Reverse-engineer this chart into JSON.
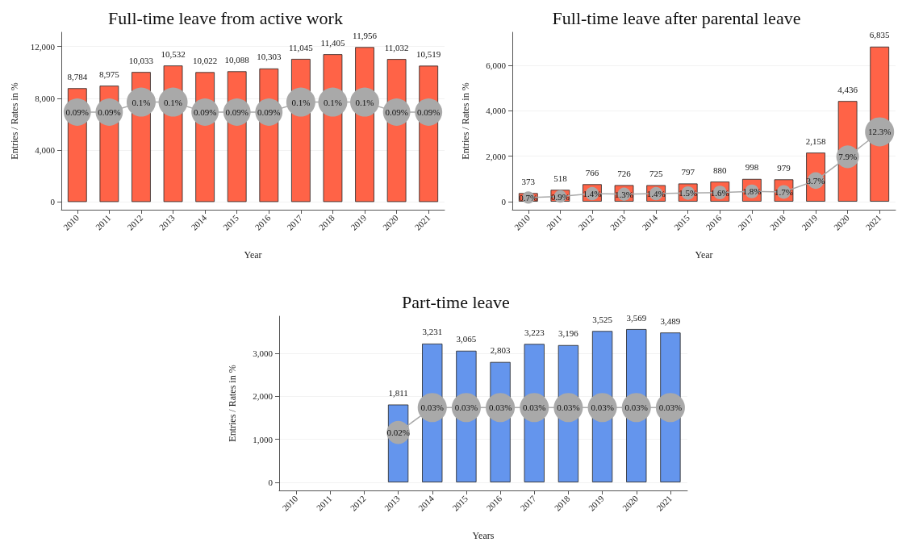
{
  "chart_data": [
    {
      "type": "bar",
      "title": "Full-time leave from active work",
      "xlabel": "Year",
      "ylabel": "Entries / Rates in %",
      "grid": "y",
      "categories": [
        "2010",
        "2011",
        "2012",
        "2013",
        "2014",
        "2015",
        "2016",
        "2017",
        "2018",
        "2019",
        "2020",
        "2021"
      ],
      "ylim": [
        -600,
        13100
      ],
      "yticks": [
        {
          "value": 0,
          "label": "0"
        },
        {
          "value": 4000,
          "label": "4,000"
        },
        {
          "value": 8000,
          "label": "8,000"
        },
        {
          "value": 12000,
          "label": "12,000"
        }
      ],
      "y2lim": [
        -0.0078,
        0.17
      ],
      "series": [
        {
          "color": "#ff6347",
          "values": [
            8784,
            8975,
            10033,
            10532,
            10022,
            10088,
            10303,
            11045,
            11405,
            11956,
            11032,
            10519
          ],
          "value_labels": [
            "8,784",
            "8,975",
            "10,033",
            "10,532",
            "10,022",
            "10,088",
            "10,303",
            "11,045",
            "11,405",
            "11,956",
            "11,032",
            "10,519"
          ]
        },
        {
          "type": "line",
          "axis": "y2",
          "color": "#a9a9a9",
          "marker": "circle",
          "values": [
            0.09,
            0.09,
            0.1,
            0.1,
            0.09,
            0.09,
            0.09,
            0.1,
            0.1,
            0.1,
            0.09,
            0.09
          ],
          "value_labels": [
            "0.09%",
            "0.09%",
            "0.1%",
            "0.1%",
            "0.09%",
            "0.09%",
            "0.09%",
            "0.1%",
            "0.1%",
            "0.1%",
            "0.09%",
            "0.09%"
          ]
        }
      ]
    },
    {
      "type": "bar",
      "title": "Full-time leave after parental leave",
      "xlabel": "Year",
      "ylabel": "Entries / Rates in %",
      "grid": "y",
      "categories": [
        "2010",
        "2011",
        "2012",
        "2013",
        "2014",
        "2015",
        "2016",
        "2017",
        "2018",
        "2019",
        "2020",
        "2021"
      ],
      "ylim": [
        -360,
        7470
      ],
      "yticks": [
        {
          "value": 0,
          "label": "0"
        },
        {
          "value": 2000,
          "label": "2,000"
        },
        {
          "value": 4000,
          "label": "4,000"
        },
        {
          "value": 6000,
          "label": "6,000"
        }
      ],
      "y2lim": [
        -1.44,
        29.88
      ],
      "series": [
        {
          "color": "#ff6347",
          "values": [
            373,
            518,
            766,
            726,
            725,
            797,
            880,
            998,
            979,
            2158,
            4436,
            6835
          ],
          "value_labels": [
            "373",
            "518",
            "766",
            "726",
            "725",
            "797",
            "880",
            "998",
            "979",
            "2,158",
            "4,436",
            "6,835"
          ]
        },
        {
          "type": "line",
          "axis": "y2",
          "color": "#a9a9a9",
          "marker": "circle",
          "values": [
            0.7,
            0.9,
            1.4,
            1.3,
            1.4,
            1.5,
            1.6,
            1.8,
            1.7,
            3.7,
            7.9,
            12.3
          ],
          "value_labels": [
            "0.7%",
            "0.9%",
            "1.4%",
            "1.3%",
            "1.4%",
            "1.5%",
            "1.6%",
            "1.8%",
            "1.7%",
            "3.7%",
            "7.9%",
            "12.3%"
          ]
        }
      ]
    },
    {
      "type": "bar",
      "title": "Part-time leave",
      "xlabel": "Years",
      "ylabel": "Entries / Rates in %",
      "grid": "y",
      "categories": [
        "2010",
        "2011",
        "2012",
        "2013",
        "2014",
        "2015",
        "2016",
        "2017",
        "2018",
        "2019",
        "2020",
        "2021"
      ],
      "ylim": [
        -190,
        3870
      ],
      "yticks": [
        {
          "value": 0,
          "label": "0"
        },
        {
          "value": 1000,
          "label": "1,000"
        },
        {
          "value": 2000,
          "label": "2,000"
        },
        {
          "value": 3000,
          "label": "3,000"
        }
      ],
      "y2lim": [
        -0.0033,
        0.0667
      ],
      "series": [
        {
          "color": "#6495ed",
          "values": [
            null,
            null,
            null,
            1811,
            3231,
            3065,
            2803,
            3223,
            3196,
            3525,
            3569,
            3489
          ],
          "value_labels": [
            null,
            null,
            null,
            "1,811",
            "3,231",
            "3,065",
            "2,803",
            "3,223",
            "3,196",
            "3,525",
            "3,569",
            "3,489"
          ]
        },
        {
          "type": "line",
          "axis": "y2",
          "color": "#a9a9a9",
          "marker": "circle",
          "values": [
            null,
            null,
            null,
            0.02,
            0.03,
            0.03,
            0.03,
            0.03,
            0.03,
            0.03,
            0.03,
            0.03
          ],
          "value_labels": [
            null,
            null,
            null,
            "0.02%",
            "0.03%",
            "0.03%",
            "0.03%",
            "0.03%",
            "0.03%",
            "0.03%",
            "0.03%",
            "0.03%"
          ]
        }
      ]
    }
  ]
}
